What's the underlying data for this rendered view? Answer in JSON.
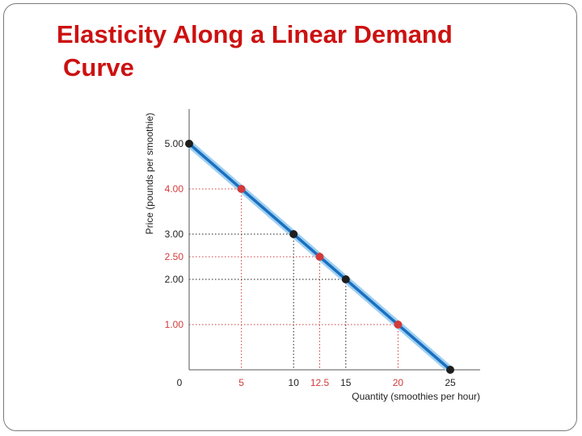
{
  "slide": {
    "title_line1": "Elasticity Along a Linear Demand",
    "title_line2": "Curve"
  },
  "colors": {
    "title": "#cc1111",
    "curve": "#1a6fc0",
    "curve_glow": "#9fd0f0",
    "highlight": "#d33a3a",
    "neutral": "#1e1e1e"
  },
  "chart_data": {
    "type": "line",
    "xlabel": "Quantity (smoothies per hour)",
    "ylabel": "Price (pounds per smoothie)",
    "xlim": [
      0,
      25
    ],
    "ylim": [
      0,
      5
    ],
    "origin_label": "0",
    "series": [
      {
        "x": [
          0,
          25
        ],
        "y": [
          5.0,
          0
        ]
      }
    ],
    "points": [
      {
        "x": 0,
        "y": 5.0,
        "highlight": false
      },
      {
        "x": 5,
        "y": 4.0,
        "highlight": true
      },
      {
        "x": 10,
        "y": 3.0,
        "highlight": false
      },
      {
        "x": 12.5,
        "y": 2.5,
        "highlight": true
      },
      {
        "x": 15,
        "y": 2.0,
        "highlight": false
      },
      {
        "x": 20,
        "y": 1.0,
        "highlight": true
      },
      {
        "x": 25,
        "y": 0,
        "highlight": false
      }
    ],
    "x_ticks": [
      {
        "value": 5,
        "label": "5",
        "highlight": true
      },
      {
        "value": 10,
        "label": "10",
        "highlight": false
      },
      {
        "value": 12.5,
        "label": "12.5",
        "highlight": true
      },
      {
        "value": 15,
        "label": "15",
        "highlight": false
      },
      {
        "value": 20,
        "label": "20",
        "highlight": true
      },
      {
        "value": 25,
        "label": "25",
        "highlight": false
      }
    ],
    "y_ticks": [
      {
        "value": 5.0,
        "label": "5.00",
        "highlight": false
      },
      {
        "value": 4.0,
        "label": "4.00",
        "highlight": true
      },
      {
        "value": 3.0,
        "label": "3.00",
        "highlight": false
      },
      {
        "value": 2.5,
        "label": "2.50",
        "highlight": true
      },
      {
        "value": 2.0,
        "label": "2.00",
        "highlight": false
      },
      {
        "value": 1.0,
        "label": "1.00",
        "highlight": true
      }
    ],
    "grid": false
  }
}
